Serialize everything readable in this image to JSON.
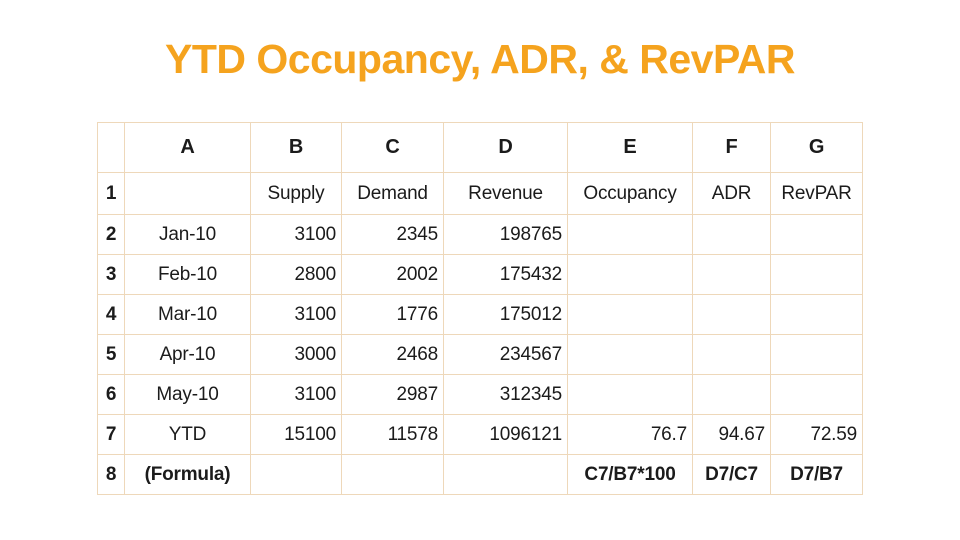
{
  "slide": {
    "title": "YTD Occupancy, ADR, & RevPAR",
    "title_color": "#F5A31E",
    "background_color": "#ffffff",
    "grid_border_color": "#EED8BA"
  },
  "table": {
    "column_letters": [
      "A",
      "B",
      "C",
      "D",
      "E",
      "F",
      "G"
    ],
    "rows": [
      {
        "num": "1",
        "cells": [
          "",
          "Supply",
          "Demand",
          "Revenue",
          "Occupancy",
          "ADR",
          "RevPAR"
        ]
      },
      {
        "num": "2",
        "cells": [
          "Jan-10",
          "3100",
          "2345",
          "198765",
          "",
          "",
          ""
        ]
      },
      {
        "num": "3",
        "cells": [
          "Feb-10",
          "2800",
          "2002",
          "175432",
          "",
          "",
          ""
        ]
      },
      {
        "num": "4",
        "cells": [
          "Mar-10",
          "3100",
          "1776",
          "175012",
          "",
          "",
          ""
        ]
      },
      {
        "num": "5",
        "cells": [
          "Apr-10",
          "3000",
          "2468",
          "234567",
          "",
          "",
          ""
        ]
      },
      {
        "num": "6",
        "cells": [
          "May-10",
          "3100",
          "2987",
          "312345",
          "",
          "",
          ""
        ]
      },
      {
        "num": "7",
        "cells": [
          "YTD",
          "15100",
          "11578",
          "1096121",
          "76.7",
          "94.67",
          "72.59"
        ]
      },
      {
        "num": "8",
        "cells": [
          "(Formula)",
          "",
          "",
          "",
          "C7/B7*100",
          "D7/C7",
          "D7/B7"
        ]
      }
    ]
  }
}
